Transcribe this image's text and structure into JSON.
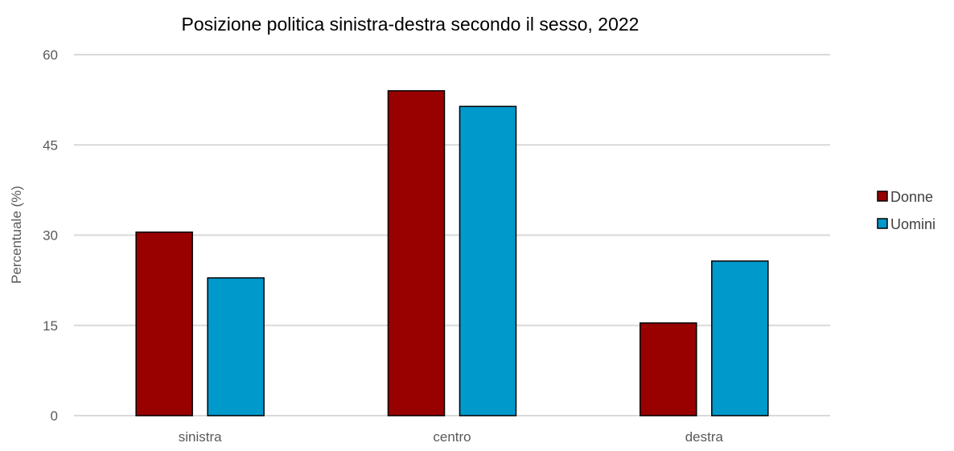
{
  "chart_data": {
    "type": "bar",
    "title": "Posizione politica sinistra-destra secondo il sesso, 2022",
    "xlabel": "",
    "ylabel": "Percentuale (%)",
    "categories": [
      "sinistra",
      "centro",
      "destra"
    ],
    "series": [
      {
        "name": "Donne",
        "values": [
          30.5,
          54.0,
          15.4
        ],
        "color": "#990000"
      },
      {
        "name": "Uomini",
        "values": [
          22.9,
          51.4,
          25.7
        ],
        "color": "#0099CC"
      }
    ],
    "ylim": [
      0,
      60
    ],
    "yticks": [
      0,
      15,
      30,
      45,
      60
    ],
    "grid": true,
    "legend_position": "right"
  }
}
